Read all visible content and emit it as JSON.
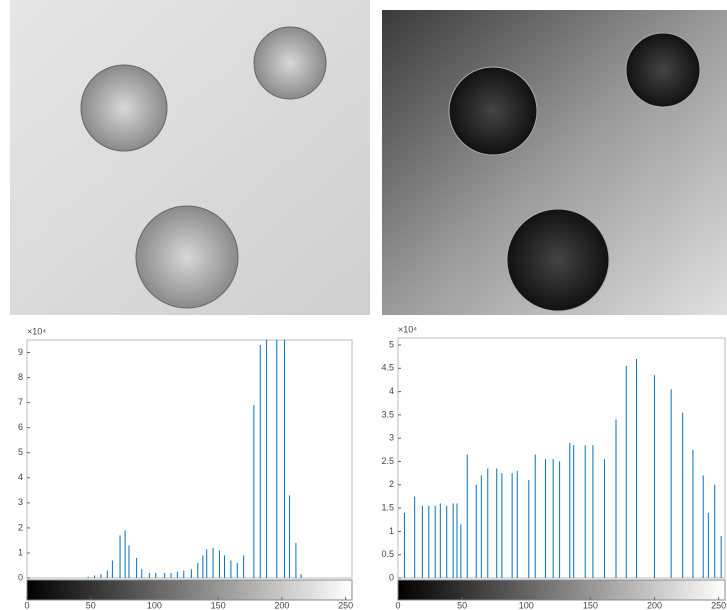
{
  "chart_data": [
    {
      "type": "bar",
      "y_multiplier": "×10⁴",
      "color": "#0072bd",
      "x": [
        48,
        53,
        58,
        63,
        67,
        73,
        77,
        80,
        86,
        90,
        96,
        101,
        108,
        113,
        118,
        123,
        129,
        134,
        138,
        141,
        146,
        151,
        155,
        160,
        165,
        170,
        178,
        183,
        188,
        196,
        202,
        206,
        211,
        215
      ],
      "values": [
        0.05,
        0.1,
        0.15,
        0.3,
        0.7,
        1.7,
        1.9,
        1.3,
        0.8,
        0.35,
        0.2,
        0.2,
        0.2,
        0.2,
        0.25,
        0.3,
        0.35,
        0.6,
        0.9,
        1.15,
        1.2,
        1.1,
        0.9,
        0.7,
        0.6,
        0.9,
        6.9,
        9.3,
        9.6,
        9.6,
        9.6,
        3.3,
        1.4,
        0.15
      ],
      "xlim": [
        0,
        255
      ],
      "ylim": [
        0,
        9.5
      ],
      "xticks": [
        0,
        50,
        100,
        150,
        200,
        250
      ],
      "yticks": [
        0,
        1,
        2,
        3,
        4,
        5,
        6,
        7,
        8,
        9
      ]
    },
    {
      "type": "bar",
      "y_multiplier": "×10⁴",
      "color": "#0072bd",
      "x": [
        5,
        13,
        19,
        24,
        29,
        33,
        38,
        43,
        46,
        49,
        54,
        61,
        65,
        70,
        77,
        81,
        89,
        93,
        102,
        107,
        115,
        121,
        126,
        134,
        137,
        146,
        152,
        161,
        170,
        178,
        186,
        200,
        213,
        222,
        230,
        238,
        242,
        247,
        252
      ],
      "values": [
        1.4,
        1.75,
        1.55,
        1.55,
        1.55,
        1.6,
        1.55,
        1.6,
        1.6,
        1.15,
        2.65,
        2.0,
        2.2,
        2.35,
        2.35,
        2.25,
        2.25,
        2.3,
        2.1,
        2.65,
        2.55,
        2.55,
        2.5,
        2.9,
        2.85,
        2.85,
        2.85,
        2.55,
        3.4,
        4.55,
        4.7,
        4.35,
        4.05,
        3.55,
        2.75,
        2.2,
        1.4,
        2.0,
        0.9
      ],
      "xlim": [
        0,
        255
      ],
      "ylim": [
        0,
        5.15
      ],
      "xticks": [
        0,
        50,
        100,
        150,
        200,
        250
      ],
      "yticks": [
        0,
        0.5,
        1,
        1.5,
        2,
        2.5,
        3,
        3.5,
        4,
        4.5,
        5
      ]
    }
  ]
}
